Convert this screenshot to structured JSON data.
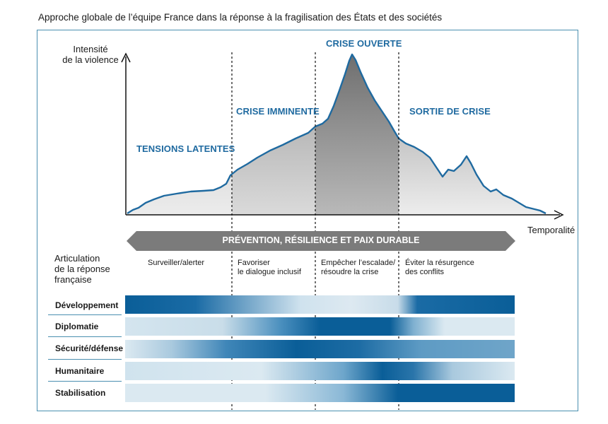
{
  "title": "Approche globale de l’équipe France dans la réponse à la fragilisation des États et des sociétés",
  "axes": {
    "y_label_line1": "Intensité",
    "y_label_line2": "de la violence",
    "x_label": "Temporalité"
  },
  "phases": [
    {
      "label": "TENSIONS LATENTES"
    },
    {
      "label": "CRISE IMMINENTE"
    },
    {
      "label": "CRISE OUVERTE"
    },
    {
      "label": "SORTIE DE CRISE"
    }
  ],
  "band": {
    "label": "PRÉVENTION, RÉSILIENCE ET PAIX DURABLE"
  },
  "response_header": {
    "line1": "Articulation",
    "line2": "de la réponse",
    "line3": "française"
  },
  "responses": [
    {
      "line1": "Surveiller/alerter",
      "line2": ""
    },
    {
      "line1": "Favoriser",
      "line2": "le dialogue inclusif"
    },
    {
      "line1": "Empêcher l’escalade/",
      "line2": "résoudre la crise"
    },
    {
      "line1": "Éviter la résurgence",
      "line2": "des conflits"
    }
  ],
  "sectors": [
    {
      "label": "Développement"
    },
    {
      "label": "Diplomatie"
    },
    {
      "label": "Sécurité/défense"
    },
    {
      "label": "Humanitaire"
    },
    {
      "label": "Stabilisation"
    }
  ],
  "colors": {
    "accent": "#1f6aa0",
    "dark_blue": "#0a5e98",
    "light_blue": "#dbe9f1",
    "band_gray": "#7b7b7b",
    "curve": "#1f6aa0"
  }
}
